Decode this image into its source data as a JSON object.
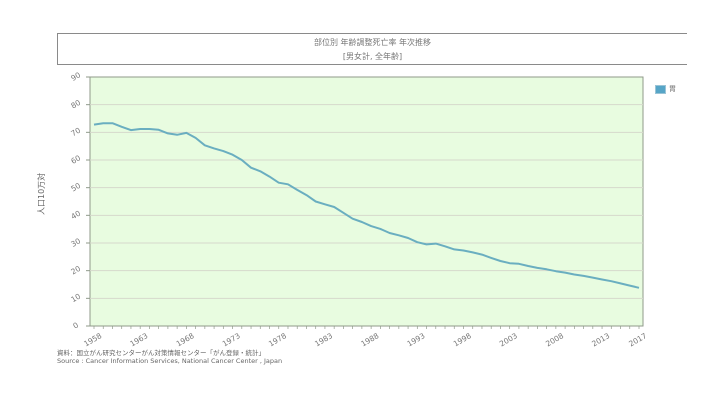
{
  "title": {
    "main": "部位別 年齢調整死亡率 年次推移",
    "sub": "[男女計, 全年齢]"
  },
  "legend": {
    "items": [
      {
        "label": "胃",
        "color": "#56a5c7"
      }
    ]
  },
  "axes": {
    "ylabel": "人口10万対",
    "yticks": [
      "0",
      "10",
      "20",
      "30",
      "40",
      "50",
      "60",
      "70",
      "80",
      "90"
    ],
    "xticks": [
      "1958",
      "1963",
      "1968",
      "1973",
      "1978",
      "1983",
      "1988",
      "1993",
      "1998",
      "2003",
      "2008",
      "2013",
      "2017"
    ]
  },
  "source": {
    "line1": "資料：国立がん研究センターがん対策情報センター「がん登録・統計」",
    "line2": "Source : Cancer Information Services, National Cancer Center , Japan"
  },
  "colors": {
    "plot_bg": "#e8fce0",
    "line": "#6aaec0",
    "grid": "#d6d9cc",
    "axis": "#8f9a8a"
  },
  "chart_data": {
    "type": "line",
    "title": "部位別 年齢調整死亡率 年次推移",
    "subtitle": "[男女計, 全年齢]",
    "xlabel": "",
    "ylabel": "人口10万対",
    "ylim": [
      0,
      90
    ],
    "xlim": [
      1958,
      2017
    ],
    "grid": true,
    "legend_position": "right",
    "x": [
      1958,
      1959,
      1960,
      1961,
      1962,
      1963,
      1964,
      1965,
      1966,
      1967,
      1968,
      1969,
      1970,
      1971,
      1972,
      1973,
      1974,
      1975,
      1976,
      1977,
      1978,
      1979,
      1980,
      1981,
      1982,
      1983,
      1984,
      1985,
      1986,
      1987,
      1988,
      1989,
      1990,
      1991,
      1992,
      1993,
      1994,
      1995,
      1996,
      1997,
      1998,
      1999,
      2000,
      2001,
      2002,
      2003,
      2004,
      2005,
      2006,
      2007,
      2008,
      2009,
      2010,
      2011,
      2012,
      2013,
      2014,
      2015,
      2016,
      2017
    ],
    "series": [
      {
        "name": "胃",
        "values": [
          72.8,
          73.3,
          73.3,
          72.0,
          70.8,
          71.2,
          71.2,
          70.9,
          69.6,
          69.1,
          69.8,
          68.0,
          65.3,
          64.2,
          63.2,
          61.9,
          60.0,
          57.2,
          55.9,
          54.0,
          51.8,
          51.2,
          49.2,
          47.3,
          45.0,
          44.0,
          43.0,
          40.9,
          38.8,
          37.6,
          36.1,
          35.1,
          33.6,
          32.8,
          31.8,
          30.3,
          29.5,
          29.8,
          28.8,
          27.7,
          27.3,
          26.6,
          25.8,
          24.6,
          23.5,
          22.7,
          22.5,
          21.7,
          21.0,
          20.5,
          19.8,
          19.3,
          18.6,
          18.1,
          17.5,
          16.8,
          16.2,
          15.4,
          14.6,
          13.8
        ]
      }
    ]
  }
}
